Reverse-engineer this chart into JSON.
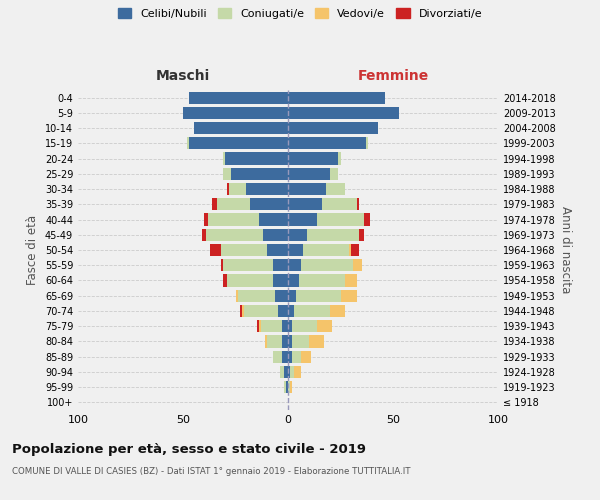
{
  "age_groups": [
    "100+",
    "95-99",
    "90-94",
    "85-89",
    "80-84",
    "75-79",
    "70-74",
    "65-69",
    "60-64",
    "55-59",
    "50-54",
    "45-49",
    "40-44",
    "35-39",
    "30-34",
    "25-29",
    "20-24",
    "15-19",
    "10-14",
    "5-9",
    "0-4"
  ],
  "birth_years": [
    "≤ 1918",
    "1919-1923",
    "1924-1928",
    "1929-1933",
    "1934-1938",
    "1939-1943",
    "1944-1948",
    "1949-1953",
    "1954-1958",
    "1959-1963",
    "1964-1968",
    "1969-1973",
    "1974-1978",
    "1979-1983",
    "1984-1988",
    "1989-1993",
    "1994-1998",
    "1999-2003",
    "2004-2008",
    "2009-2013",
    "2014-2018"
  ],
  "maschi": {
    "celibi": [
      0,
      1,
      2,
      3,
      3,
      3,
      5,
      6,
      7,
      7,
      10,
      12,
      14,
      18,
      20,
      27,
      30,
      47,
      45,
      50,
      47
    ],
    "coniugati": [
      0,
      1,
      2,
      4,
      7,
      10,
      16,
      18,
      22,
      24,
      22,
      27,
      24,
      16,
      8,
      4,
      1,
      1,
      0,
      0,
      0
    ],
    "vedovi": [
      0,
      0,
      0,
      0,
      1,
      1,
      1,
      1,
      0,
      0,
      0,
      0,
      0,
      0,
      0,
      0,
      0,
      0,
      0,
      0,
      0
    ],
    "divorziati": [
      0,
      0,
      0,
      0,
      0,
      1,
      1,
      0,
      2,
      1,
      5,
      2,
      2,
      2,
      1,
      0,
      0,
      0,
      0,
      0,
      0
    ]
  },
  "femmine": {
    "nubili": [
      0,
      0,
      1,
      2,
      2,
      2,
      3,
      4,
      5,
      6,
      7,
      9,
      14,
      16,
      18,
      20,
      24,
      37,
      43,
      53,
      46
    ],
    "coniugate": [
      0,
      1,
      2,
      4,
      8,
      12,
      17,
      21,
      22,
      25,
      22,
      25,
      22,
      17,
      9,
      4,
      1,
      1,
      0,
      0,
      0
    ],
    "vedove": [
      0,
      1,
      3,
      5,
      7,
      7,
      7,
      8,
      6,
      4,
      1,
      0,
      0,
      0,
      0,
      0,
      0,
      0,
      0,
      0,
      0
    ],
    "divorziate": [
      0,
      0,
      0,
      0,
      0,
      0,
      0,
      0,
      0,
      0,
      4,
      2,
      3,
      1,
      0,
      0,
      0,
      0,
      0,
      0,
      0
    ]
  },
  "colors": {
    "celibi": "#3d6b9e",
    "coniugati": "#c5d9a8",
    "vedovi": "#f5c46a",
    "divorziati": "#cc2222"
  },
  "legend_labels": [
    "Celibi/Nubili",
    "Coniugati/e",
    "Vedovi/e",
    "Divorziati/e"
  ],
  "title": "Popolazione per età, sesso e stato civile - 2019",
  "subtitle": "COMUNE DI VALLE DI CASIES (BZ) - Dati ISTAT 1° gennaio 2019 - Elaborazione TUTTITALIA.IT",
  "ylabel_left": "Fasce di età",
  "ylabel_right": "Anni di nascita",
  "xlabel_left": "Maschi",
  "xlabel_right": "Femmine",
  "xlim": 100,
  "bg_color": "#f0f0f0",
  "grid_color": "#cccccc"
}
